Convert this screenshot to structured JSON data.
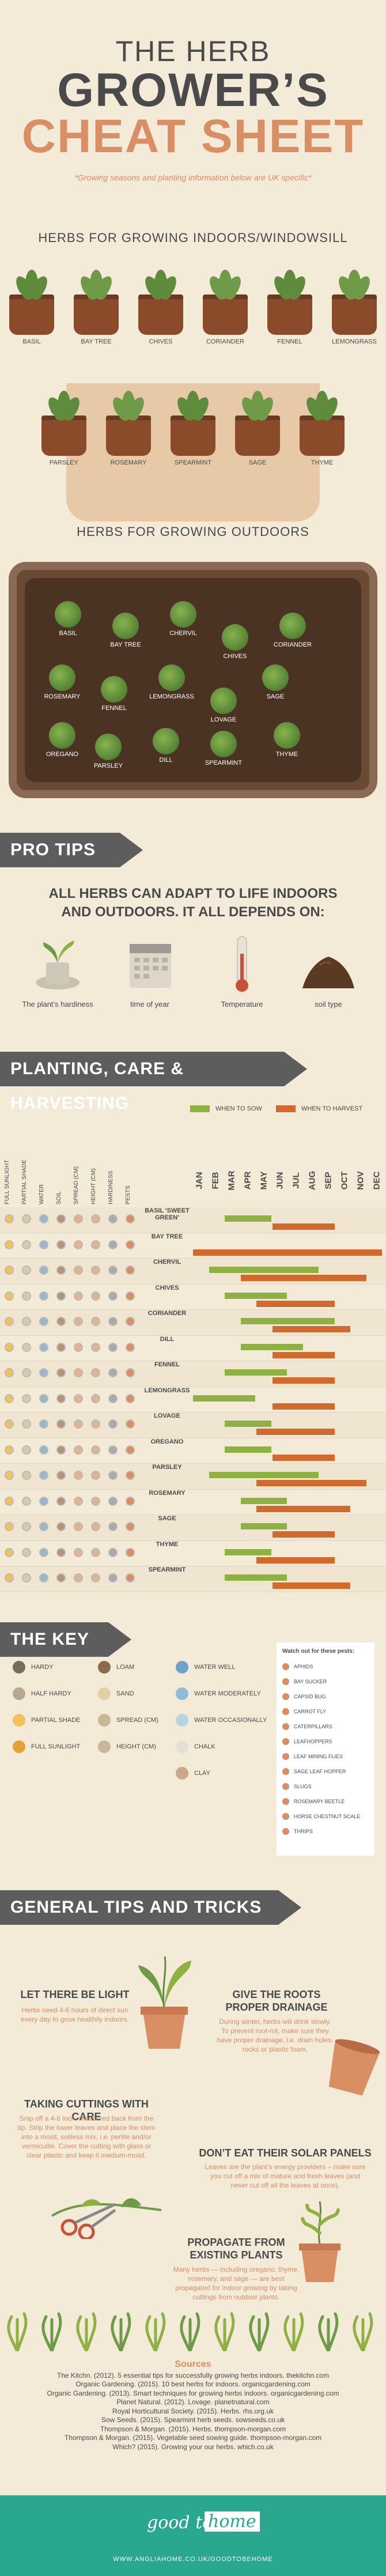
{
  "header": {
    "the_herb": "THE HERB",
    "growers": "GROWER’S",
    "cheat_sheet": "CHEAT SHEET",
    "subtitle": "*Growing seasons and planting information below are UK specific*"
  },
  "indoors": {
    "heading": "HERBS FOR GROWING INDOORS/WINDOWSILL",
    "row1": [
      "BASIL",
      "BAY TREE",
      "CHIVES",
      "CORIANDER",
      "FENNEL",
      "LEMONGRASS"
    ],
    "row2": [
      "PARSLEY",
      "ROSEMARY",
      "SPEARMINT",
      "SAGE",
      "THYME"
    ]
  },
  "outdoors": {
    "heading": "HERBS FOR GROWING OUTDOORS",
    "plants": [
      "BASIL",
      "BAY TREE",
      "CHERVIL",
      "CHIVES",
      "CORIANDER",
      "ROSEMARY",
      "FENNEL",
      "LEMONGRASS",
      "SAGE",
      "LOVAGE",
      "OREGANO",
      "PARSLEY",
      "DILL",
      "SPEARMINT",
      "THYME"
    ]
  },
  "pro_tips": {
    "banner": "PRO TIPS",
    "line1": "ALL HERBS CAN ADAPT TO LIFE INDOORS",
    "line2": "AND OUTDOORS. IT ALL DEPENDS ON:",
    "factors": [
      "The plant’s hardiness",
      "time of year",
      "Temperature",
      "soil type"
    ]
  },
  "planting": {
    "banner": "PLANTING, CARE & HARVESTING",
    "legend_sow": "WHEN TO SOW",
    "legend_harvest": "WHEN TO HARVEST",
    "trait_headers": [
      "FULL SUNLIGHT",
      "PARTIAL SHADE",
      "WATER",
      "SOIL",
      "SPREAD (CM)",
      "HEIGHT (CM)",
      "HARDINESS",
      "PESTS"
    ],
    "months": [
      "JAN",
      "FEB",
      "MAR",
      "APR",
      "MAY",
      "JUN",
      "JUL",
      "AUG",
      "SEP",
      "OCT",
      "NOV",
      "DEC"
    ],
    "herbs": [
      {
        "name": "BASIL 'SWEET GREEN'",
        "sow": [
          2,
          4
        ],
        "harvest": [
          5,
          8
        ]
      },
      {
        "name": "BAY TREE",
        "sow": [],
        "harvest": [
          0,
          11
        ]
      },
      {
        "name": "CHERVIL",
        "sow": [
          1,
          7
        ],
        "harvest": [
          3,
          10
        ]
      },
      {
        "name": "CHIVES",
        "sow": [
          2,
          5
        ],
        "harvest": [
          4,
          8
        ]
      },
      {
        "name": "CORIANDER",
        "sow": [
          3,
          8
        ],
        "harvest": [
          5,
          9
        ]
      },
      {
        "name": "DILL",
        "sow": [
          3,
          6
        ],
        "harvest": [
          5,
          8
        ]
      },
      {
        "name": "FENNEL",
        "sow": [
          2,
          5
        ],
        "harvest": [
          5,
          8
        ]
      },
      {
        "name": "LEMONGRASS",
        "sow": [
          0,
          3
        ],
        "harvest": [
          5,
          8
        ]
      },
      {
        "name": "LOVAGE",
        "sow": [
          2,
          4
        ],
        "harvest": [
          4,
          8
        ]
      },
      {
        "name": "OREGANO",
        "sow": [
          2,
          4
        ],
        "harvest": [
          5,
          8
        ]
      },
      {
        "name": "PARSLEY",
        "sow": [
          1,
          7
        ],
        "harvest": [
          4,
          10
        ]
      },
      {
        "name": "ROSEMARY",
        "sow": [
          3,
          5
        ],
        "harvest": [
          4,
          9
        ]
      },
      {
        "name": "SAGE",
        "sow": [
          3,
          5
        ],
        "harvest": [
          5,
          8
        ]
      },
      {
        "name": "THYME",
        "sow": [
          2,
          4
        ],
        "harvest": [
          4,
          8
        ]
      },
      {
        "name": "SPEARMINT",
        "sow": [
          2,
          5
        ],
        "harvest": [
          5,
          9
        ]
      }
    ]
  },
  "key": {
    "banner": "THE KEY",
    "col1": [
      "HARDY",
      "HALF HARDY",
      "PARTIAL SHADE",
      "FULL SUNLIGHT"
    ],
    "col2": [
      "LOAM",
      "SAND",
      "SPREAD (CM)",
      "HEIGHT (CM)"
    ],
    "col3": [
      "WATER WELL",
      "WATER MODERATELY",
      "WATER OCCASIONALLY",
      "CHALK",
      "CLAY"
    ],
    "watch_title": "Watch out for these pests:",
    "pests": [
      "APHIDS",
      "BAY SUCKER",
      "CAPSID BUG",
      "CARROT FLY",
      "CATERPILLARS",
      "LEAFHOPPERS",
      "LEAF MINING FLIES",
      "SAGE LEAF HOPPER",
      "SLUGS",
      "ROSEMARY BEETLE",
      "HORSE CHESTNUT SCALE",
      "THRIPS"
    ]
  },
  "general": {
    "banner": "GENERAL TIPS AND TRICKS",
    "tips": [
      {
        "title": "LET THERE BE LIGHT",
        "body": "Herbs need 4-6 hours of direct sun every day to grow healthily indoors."
      },
      {
        "title": "GIVE THE ROOTS PROPER DRAINAGE",
        "body": "During winter, herbs will drink slowly. To prevent root-rot, make sure they have proper drainage, i.e. drain holes, rocks or plastic foam."
      },
      {
        "title": "TAKING CUTTINGS WITH CARE",
        "body": "Snip off a 4-6 inch, measured back from the tip. Strip the lower leaves and place the stem into a moist, soilless mix, i.e. perlite and/or vermiculite. Cover the cutting with glass or clear plastic and keep it medium-moist."
      },
      {
        "title": "DON’T EAT THEIR SOLAR PANELS",
        "body": "Leaves are the plant’s energy providers – make sure you cut off a mix of mature and fresh leaves (and never cut off all the leaves at once)."
      },
      {
        "title": "PROPAGATE FROM EXISTING PLANTS",
        "body": "Many herbs — including oregano, thyme, rosemary, and sage — are best propagated for indoor growing by taking cuttings from outdoor plants."
      }
    ]
  },
  "sources": {
    "title": "Sources",
    "lines": [
      "The Kitchn. (2012). 5 essential tips for successfully growing herbs indoors. thekitchn.com",
      "Organic Gardening. (2015). 10 best herbs for indoors. organicgardening.com",
      "Organic Gardening. (2013). Smart techniques for growing herbs indoors. organicgardening.com",
      "Planet Natural. (2012). Lovage. planetnatural.com",
      "Royal Horticultural Society. (2015). Herbs. rhs.org.uk",
      "Sow Seeds. (2015). Spearmint herb seeds. sowseeds.co.uk",
      "Thompson & Morgan. (2015). Herbs. thompson-morgan.com",
      "Thompson & Morgan. (2015). Vegetable seed sowing guide. thompson-morgan.com",
      "Which? (2015). Growing your our herbs. which.co.uk"
    ]
  },
  "footer": {
    "logo_left": "good to be",
    "logo_right": "home",
    "url": "WWW.ANGLIAHOME.CO.UK/GOODTOBEHOME"
  },
  "colors": {
    "accent": "#d98e64",
    "sow": "#8fb043",
    "harvest": "#d36a2d",
    "banner": "#5d5d5d",
    "footer": "#2aa88f"
  }
}
